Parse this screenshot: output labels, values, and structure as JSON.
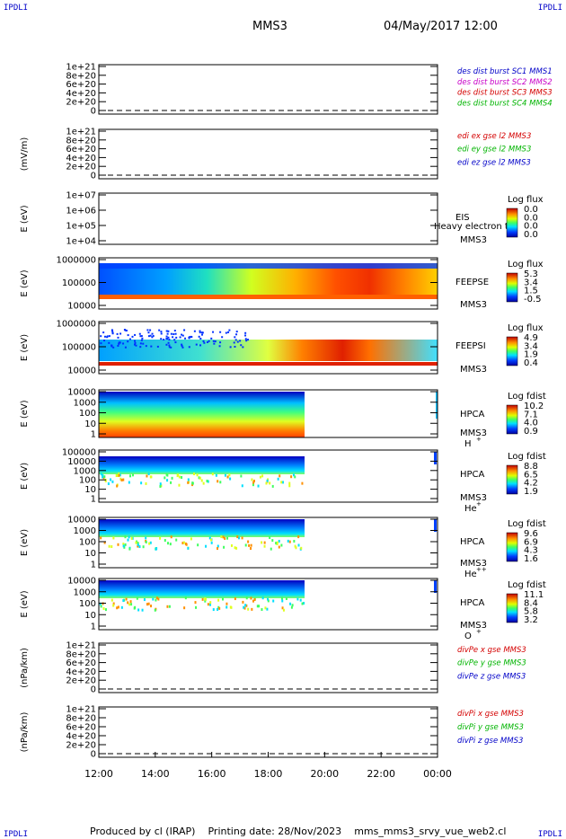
{
  "corner_label": "IPDLI",
  "header": {
    "spacecraft": "MMS3",
    "date_time": "04/May/2017 12:00"
  },
  "footer": {
    "produced_by": "Produced by cl (IRAP)",
    "printing_date": "Printing date: 28/Nov/2023",
    "script": "mms_mms3_srvy_vue_web2.cl"
  },
  "colors": {
    "red": "#d40000",
    "green": "#00b400",
    "blue": "#0000c8",
    "magenta": "#c800c8"
  },
  "chart_data": {
    "type": "heatmap",
    "x_ticks": [
      "12:00",
      "14:00",
      "16:00",
      "18:00",
      "20:00",
      "22:00",
      "00:00"
    ],
    "panels": [
      {
        "id": "des",
        "ylabel": "",
        "yticks": [
          "1e+21",
          "8e+20",
          "6e+20",
          "4e+20",
          "2e+20",
          "0"
        ],
        "legend": [
          {
            "text": "des dist burst SC1 MMS1",
            "color": "blue"
          },
          {
            "text": "des dist burst SC2 MMS2",
            "color": "magenta"
          },
          {
            "text": "des dist burst SC3 MMS3",
            "color": "red"
          },
          {
            "text": "des dist burst SC4 MMS4",
            "color": "green"
          }
        ]
      },
      {
        "id": "edi",
        "ylabel": "(mV/m)",
        "yticks": [
          "1e+21",
          "8e+20",
          "6e+20",
          "4e+20",
          "2e+20",
          "0"
        ],
        "legend": [
          {
            "text": "edi ex gse l2 MMS3",
            "color": "red"
          },
          {
            "text": "edi ey gse l2 MMS3",
            "color": "green"
          },
          {
            "text": "edi ez gse l2 MMS3",
            "color": "blue"
          }
        ]
      },
      {
        "id": "eis",
        "ylabel": "E (eV)",
        "yticks": [
          "1e+07",
          "1e+06",
          "1e+05",
          "1e+04"
        ],
        "instrument": "EIS",
        "species": "Heavy electron tof",
        "sc": "MMS3",
        "cbar_title": "Log flux",
        "cbar_ticks": [
          "0.0",
          "0.0",
          "0.0",
          "0.0"
        ]
      },
      {
        "id": "feepse",
        "ylabel": "E (eV)",
        "yticks": [
          "1000000",
          "100000",
          "10000"
        ],
        "instrument": "FEEPSE",
        "sc": "MMS3",
        "cbar_title": "Log flux",
        "cbar_ticks": [
          "5.3",
          "3.4",
          "1.5",
          "-0.5"
        ]
      },
      {
        "id": "feepsi",
        "ylabel": "E (eV)",
        "yticks": [
          "1000000",
          "100000",
          "10000"
        ],
        "instrument": "FEEPSI",
        "sc": "MMS3",
        "cbar_title": "Log flux",
        "cbar_ticks": [
          "4.9",
          "3.4",
          "1.9",
          "0.4"
        ]
      },
      {
        "id": "hpca-h",
        "ylabel": "E (eV)",
        "yticks": [
          "10000",
          "1000",
          "100",
          "10",
          "1"
        ],
        "instrument": "HPCA",
        "sc": "MMS3",
        "species": "H",
        "charge": "+",
        "cbar_title": "Log fdist",
        "cbar_ticks": [
          "10.2",
          "7.1",
          "4.0",
          "0.9"
        ]
      },
      {
        "id": "hpca-he",
        "ylabel": "E (eV)",
        "yticks": [
          "100000",
          "10000",
          "1000",
          "100",
          "10",
          "1"
        ],
        "instrument": "HPCA",
        "sc": "MMS3",
        "species": "He",
        "charge": "+",
        "cbar_title": "Log fdist",
        "cbar_ticks": [
          "8.8",
          "6.5",
          "4.2",
          "1.9"
        ]
      },
      {
        "id": "hpca-he2",
        "ylabel": "E (eV)",
        "yticks": [
          "10000",
          "1000",
          "100",
          "10",
          "1"
        ],
        "instrument": "HPCA",
        "sc": "MMS3",
        "species": "He",
        "charge": "++",
        "cbar_title": "Log fdist",
        "cbar_ticks": [
          "9.6",
          "6.9",
          "4.3",
          "1.6"
        ]
      },
      {
        "id": "hpca-o",
        "ylabel": "E (eV)",
        "yticks": [
          "10000",
          "1000",
          "100",
          "10",
          "1"
        ],
        "instrument": "HPCA",
        "sc": "MMS3",
        "species": "O",
        "charge": "+",
        "cbar_title": "Log fdist",
        "cbar_ticks": [
          "11.1",
          "8.4",
          "5.8",
          "3.2"
        ]
      },
      {
        "id": "divpe",
        "ylabel": "(nPa/km)",
        "yticks": [
          "1e+21",
          "8e+20",
          "6e+20",
          "4e+20",
          "2e+20",
          "0"
        ],
        "legend": [
          {
            "text": "divPe x gse MMS3",
            "color": "red"
          },
          {
            "text": "divPe y gse MMS3",
            "color": "green"
          },
          {
            "text": "divPe z gse MMS3",
            "color": "blue"
          }
        ]
      },
      {
        "id": "divpi",
        "ylabel": "(nPa/km)",
        "yticks": [
          "1e+21",
          "8e+20",
          "6e+20",
          "4e+20",
          "2e+20",
          "0"
        ],
        "legend": [
          {
            "text": "divPi x gse MMS3",
            "color": "red"
          },
          {
            "text": "divPi y gse MMS3",
            "color": "green"
          },
          {
            "text": "divPi z gse MMS3",
            "color": "blue"
          }
        ]
      }
    ]
  }
}
